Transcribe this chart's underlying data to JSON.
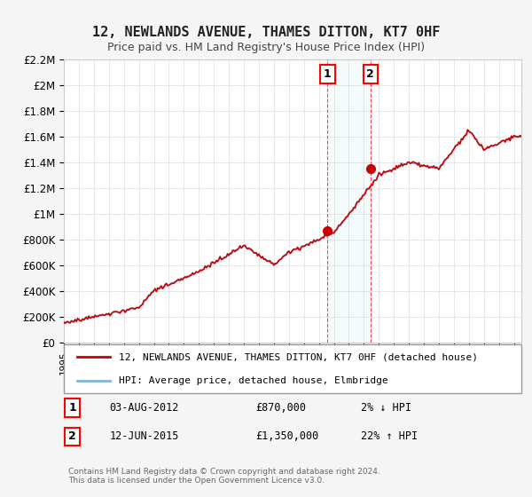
{
  "title": "12, NEWLANDS AVENUE, THAMES DITTON, KT7 0HF",
  "subtitle": "Price paid vs. HM Land Registry's House Price Index (HPI)",
  "ylabel_ticks": [
    "£0",
    "£200K",
    "£400K",
    "£600K",
    "£800K",
    "£1M",
    "£1.2M",
    "£1.4M",
    "£1.6M",
    "£1.8M",
    "£2M",
    "£2.2M"
  ],
  "ytick_values": [
    0,
    200000,
    400000,
    600000,
    800000,
    1000000,
    1200000,
    1400000,
    1600000,
    1800000,
    2000000,
    2200000
  ],
  "ylim": [
    0,
    2200000
  ],
  "xlim_start": 1995.0,
  "xlim_end": 2025.5,
  "property_color": "#cc0000",
  "hpi_color": "#7eb6d4",
  "sale1_date": "03-AUG-2012",
  "sale1_price": 870000,
  "sale1_label": "1",
  "sale1_year": 2012.58,
  "sale2_date": "12-JUN-2015",
  "sale2_price": 1350000,
  "sale2_label": "2",
  "sale2_year": 2015.44,
  "legend_property": "12, NEWLANDS AVENUE, THAMES DITTON, KT7 0HF (detached house)",
  "legend_hpi": "HPI: Average price, detached house, Elmbridge",
  "annotation1": "1    03-AUG-2012         £870,000           2% ↓ HPI",
  "annotation2": "2    12-JUN-2015      £1,350,000         22% ↑ HPI",
  "footer": "Contains HM Land Registry data © Crown copyright and database right 2024.\nThis data is licensed under the Open Government Licence v3.0.",
  "background_color": "#f5f5f5",
  "plot_bg_color": "#ffffff",
  "grid_color": "#dddddd"
}
